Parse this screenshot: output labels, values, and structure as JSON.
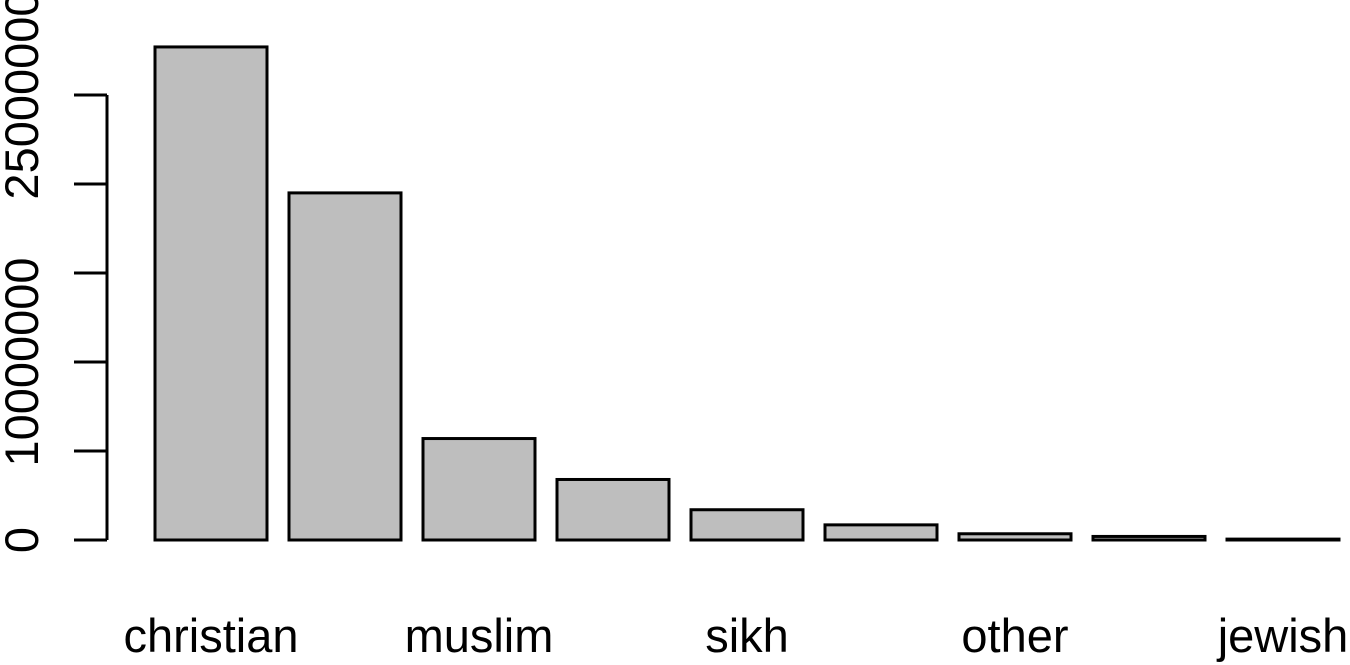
{
  "chart_data": {
    "type": "bar",
    "title": "",
    "xlabel": "",
    "ylabel": "",
    "categories": [
      "christian",
      "",
      "muslim",
      "",
      "sikh",
      "",
      "other",
      "",
      "jewish"
    ],
    "values": [
      27700000,
      19500000,
      5700000,
      3400000,
      1700000,
      850000,
      350000,
      200000,
      50000
    ],
    "ylim": [
      0,
      27700000
    ],
    "y_ticks": [
      0,
      5000000,
      10000000,
      15000000,
      20000000,
      25000000
    ],
    "y_tick_labels": [
      "0",
      "",
      "10000000",
      "",
      "",
      "25000000"
    ],
    "bar_fill": "#bebebe",
    "bar_stroke": "#000000",
    "grid": false,
    "legend": "none"
  }
}
